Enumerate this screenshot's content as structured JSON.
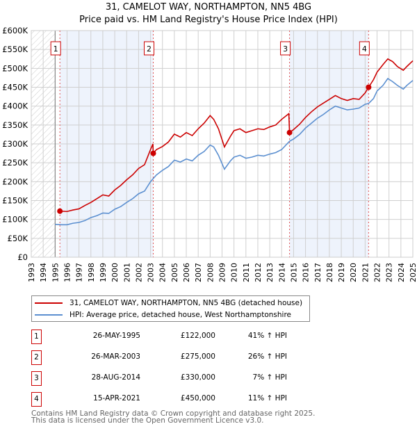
{
  "chart_data": {
    "type": "line",
    "title": "31, CAMELOT WAY, NORTHAMPTON, NN5 4BG",
    "subtitle": "Price paid vs. HM Land Registry's House Price Index (HPI)",
    "xlim": [
      1993,
      2025
    ],
    "ylim": [
      0,
      600000
    ],
    "x_ticks": [
      "1993",
      "1994",
      "1995",
      "1996",
      "1997",
      "1998",
      "1999",
      "2000",
      "2001",
      "2002",
      "2003",
      "2004",
      "2005",
      "2006",
      "2007",
      "2008",
      "2009",
      "2010",
      "2011",
      "2012",
      "2013",
      "2014",
      "2015",
      "2016",
      "2017",
      "2018",
      "2019",
      "2020",
      "2021",
      "2022",
      "2023",
      "2024",
      "2025"
    ],
    "y_ticks": [
      {
        "v": 0,
        "label": "£0"
      },
      {
        "v": 50000,
        "label": "£50K"
      },
      {
        "v": 100000,
        "label": "£100K"
      },
      {
        "v": 150000,
        "label": "£150K"
      },
      {
        "v": 200000,
        "label": "£200K"
      },
      {
        "v": 250000,
        "label": "£250K"
      },
      {
        "v": 300000,
        "label": "£300K"
      },
      {
        "v": 350000,
        "label": "£350K"
      },
      {
        "v": 400000,
        "label": "£400K"
      },
      {
        "v": 450000,
        "label": "£450K"
      },
      {
        "v": 500000,
        "label": "£500K"
      },
      {
        "v": 550000,
        "label": "£550K"
      },
      {
        "v": 600000,
        "label": "£600K"
      }
    ],
    "grid": true,
    "hatched_before": 1995,
    "shaded_ranges": [
      [
        1995.4,
        2003.23
      ],
      [
        2014.66,
        2021.29
      ]
    ],
    "series": [
      {
        "name": "31, CAMELOT WAY, NORTHAMPTON, NN5 4BG (detached house)",
        "color": "#cc0000",
        "points": [
          [
            1995.4,
            122000
          ],
          [
            1996,
            121000
          ],
          [
            1996.5,
            125000
          ],
          [
            1997,
            128000
          ],
          [
            1997.5,
            137000
          ],
          [
            1998,
            145000
          ],
          [
            1998.5,
            155000
          ],
          [
            1999,
            165000
          ],
          [
            1999.5,
            162000
          ],
          [
            2000,
            178000
          ],
          [
            2000.5,
            190000
          ],
          [
            2001,
            205000
          ],
          [
            2001.5,
            218000
          ],
          [
            2002,
            235000
          ],
          [
            2002.5,
            245000
          ],
          [
            2003,
            285000
          ],
          [
            2003.2,
            300000
          ],
          [
            2003.23,
            275000
          ],
          [
            2003.5,
            285000
          ],
          [
            2004,
            293000
          ],
          [
            2004.5,
            305000
          ],
          [
            2005,
            326000
          ],
          [
            2005.5,
            318000
          ],
          [
            2006,
            330000
          ],
          [
            2006.5,
            322000
          ],
          [
            2007,
            340000
          ],
          [
            2007.5,
            355000
          ],
          [
            2008,
            375000
          ],
          [
            2008.3,
            365000
          ],
          [
            2008.7,
            340000
          ],
          [
            2009.2,
            292000
          ],
          [
            2009.7,
            320000
          ],
          [
            2010,
            335000
          ],
          [
            2010.5,
            340000
          ],
          [
            2011,
            330000
          ],
          [
            2011.5,
            335000
          ],
          [
            2012,
            340000
          ],
          [
            2012.5,
            338000
          ],
          [
            2013,
            345000
          ],
          [
            2013.5,
            350000
          ],
          [
            2014,
            365000
          ],
          [
            2014.6,
            380000
          ],
          [
            2014.66,
            330000
          ],
          [
            2015,
            338000
          ],
          [
            2015.5,
            352000
          ],
          [
            2016,
            370000
          ],
          [
            2016.5,
            385000
          ],
          [
            2017,
            398000
          ],
          [
            2017.5,
            408000
          ],
          [
            2018,
            418000
          ],
          [
            2018.5,
            428000
          ],
          [
            2019,
            420000
          ],
          [
            2019.5,
            415000
          ],
          [
            2020,
            420000
          ],
          [
            2020.5,
            418000
          ],
          [
            2021,
            435000
          ],
          [
            2021.29,
            450000
          ],
          [
            2021.7,
            470000
          ],
          [
            2022,
            490000
          ],
          [
            2022.5,
            510000
          ],
          [
            2022.9,
            525000
          ],
          [
            2023.3,
            518000
          ],
          [
            2023.7,
            505000
          ],
          [
            2024.2,
            495000
          ],
          [
            2024.5,
            505000
          ],
          [
            2025,
            520000
          ]
        ]
      },
      {
        "name": "HPI: Average price, detached house, West Northamptonshire",
        "color": "#5b8fd0",
        "points": [
          [
            1995,
            87000
          ],
          [
            1995.5,
            86000
          ],
          [
            1996,
            86000
          ],
          [
            1996.5,
            90000
          ],
          [
            1997,
            92000
          ],
          [
            1997.5,
            97000
          ],
          [
            1998,
            105000
          ],
          [
            1998.5,
            110000
          ],
          [
            1999,
            117000
          ],
          [
            1999.5,
            116000
          ],
          [
            2000,
            127000
          ],
          [
            2000.5,
            134000
          ],
          [
            2001,
            145000
          ],
          [
            2001.5,
            155000
          ],
          [
            2002,
            168000
          ],
          [
            2002.5,
            175000
          ],
          [
            2003,
            200000
          ],
          [
            2003.5,
            218000
          ],
          [
            2004,
            230000
          ],
          [
            2004.5,
            240000
          ],
          [
            2005,
            257000
          ],
          [
            2005.5,
            252000
          ],
          [
            2006,
            260000
          ],
          [
            2006.5,
            255000
          ],
          [
            2007,
            270000
          ],
          [
            2007.5,
            280000
          ],
          [
            2008,
            297000
          ],
          [
            2008.3,
            292000
          ],
          [
            2008.7,
            270000
          ],
          [
            2009.2,
            233000
          ],
          [
            2009.7,
            255000
          ],
          [
            2010,
            265000
          ],
          [
            2010.5,
            270000
          ],
          [
            2011,
            262000
          ],
          [
            2011.5,
            265000
          ],
          [
            2012,
            270000
          ],
          [
            2012.5,
            268000
          ],
          [
            2013,
            273000
          ],
          [
            2013.5,
            277000
          ],
          [
            2014,
            285000
          ],
          [
            2014.66,
            307000
          ],
          [
            2015,
            313000
          ],
          [
            2015.5,
            325000
          ],
          [
            2016,
            342000
          ],
          [
            2016.5,
            355000
          ],
          [
            2017,
            368000
          ],
          [
            2017.5,
            378000
          ],
          [
            2018,
            390000
          ],
          [
            2018.5,
            400000
          ],
          [
            2019,
            395000
          ],
          [
            2019.5,
            390000
          ],
          [
            2020,
            392000
          ],
          [
            2020.5,
            395000
          ],
          [
            2021,
            405000
          ],
          [
            2021.29,
            407000
          ],
          [
            2021.7,
            420000
          ],
          [
            2022,
            440000
          ],
          [
            2022.5,
            455000
          ],
          [
            2022.9,
            473000
          ],
          [
            2023.3,
            465000
          ],
          [
            2023.7,
            455000
          ],
          [
            2024.2,
            445000
          ],
          [
            2024.5,
            455000
          ],
          [
            2025,
            468000
          ]
        ]
      }
    ],
    "sales": [
      {
        "n": "1",
        "x": 1995.4,
        "y": 122000
      },
      {
        "n": "2",
        "x": 2003.23,
        "y": 275000
      },
      {
        "n": "3",
        "x": 2014.66,
        "y": 330000
      },
      {
        "n": "4",
        "x": 2021.29,
        "y": 450000
      }
    ]
  },
  "legend": {
    "property": "31, CAMELOT WAY, NORTHAMPTON, NN5 4BG (detached house)",
    "hpi": "HPI: Average price, detached house, West Northamptonshire"
  },
  "transactions": [
    {
      "n": "1",
      "date": "26-MAY-1995",
      "price": "£122,000",
      "hpi": "41% ↑ HPI"
    },
    {
      "n": "2",
      "date": "26-MAR-2003",
      "price": "£275,000",
      "hpi": "26% ↑ HPI"
    },
    {
      "n": "3",
      "date": "28-AUG-2014",
      "price": "£330,000",
      "hpi": "7% ↑ HPI"
    },
    {
      "n": "4",
      "date": "15-APR-2021",
      "price": "£450,000",
      "hpi": "11% ↑ HPI"
    }
  ],
  "footer": {
    "line1": "Contains HM Land Registry data © Crown copyright and database right 2025.",
    "line2": "This data is licensed under the Open Government Licence v3.0."
  }
}
